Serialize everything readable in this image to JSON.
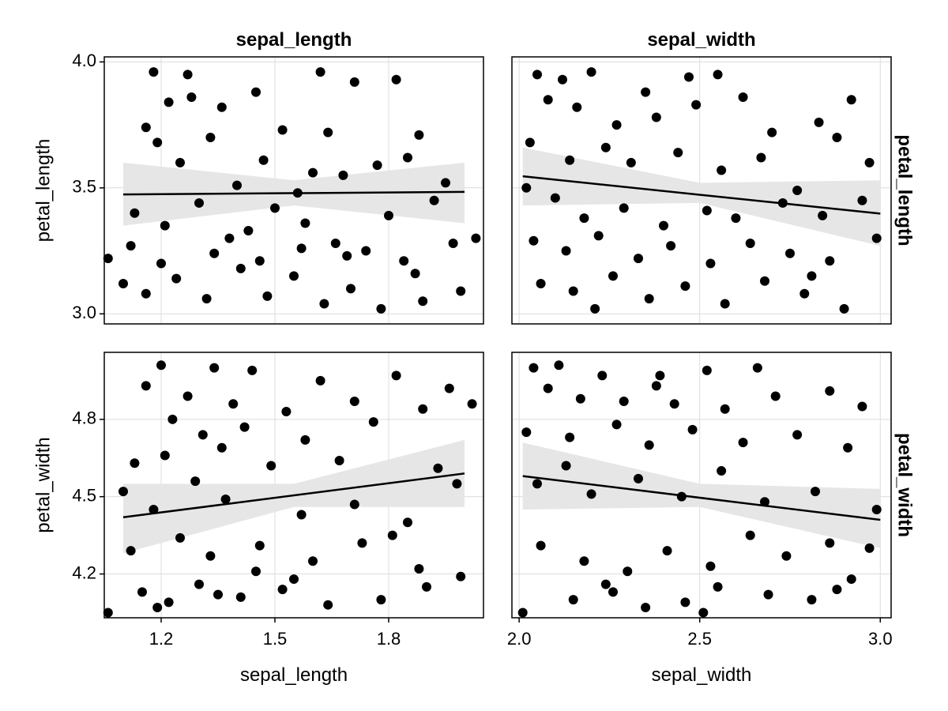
{
  "colors": {
    "point": "#000000",
    "fit_line": "#000000",
    "band": "#e6e6e6",
    "grid": "#dcdcdc",
    "frame": "#000000"
  },
  "chart_data": {
    "type": "scatter",
    "layout": "2x2 facet grid with linear fit and confidence band",
    "x_variables": [
      {
        "name": "sepal_length",
        "label": "sepal_length",
        "lim": [
          1.05,
          2.05
        ],
        "ticks": [
          1.2,
          1.5,
          1.8
        ],
        "tick_labels": [
          "1.2",
          "1.5",
          "1.8"
        ]
      },
      {
        "name": "sepal_width",
        "label": "sepal_width",
        "lim": [
          1.98,
          3.03
        ],
        "ticks": [
          2.0,
          2.5,
          3.0
        ],
        "tick_labels": [
          "2.0",
          "2.5",
          "3.0"
        ]
      }
    ],
    "y_variables": [
      {
        "name": "petal_length",
        "label": "petal_length",
        "lim": [
          2.96,
          4.02
        ],
        "ticks": [
          3.0,
          3.5,
          4.0
        ],
        "tick_labels": [
          "3.0",
          "3.5",
          "4.0"
        ]
      },
      {
        "name": "petal_width",
        "label": "petal_width",
        "lim": [
          4.03,
          5.06
        ],
        "ticks": [
          4.2,
          4.5,
          4.8
        ],
        "tick_labels": [
          "4.2",
          "4.5",
          "4.8"
        ]
      }
    ],
    "grid": true,
    "panels": [
      {
        "row": 0,
        "col": 0,
        "fit": {
          "x0": 1.1,
          "y0": 3.474,
          "x1": 2.0,
          "y1": 3.484
        },
        "band": [
          [
            1.1,
            3.35,
            3.6
          ],
          [
            1.55,
            3.43,
            3.53
          ],
          [
            2.0,
            3.36,
            3.6
          ]
        ],
        "points": [
          [
            1.18,
            3.96
          ],
          [
            1.27,
            3.95
          ],
          [
            1.45,
            3.88
          ],
          [
            1.62,
            3.96
          ],
          [
            1.71,
            3.92
          ],
          [
            1.82,
            3.93
          ],
          [
            1.22,
            3.84
          ],
          [
            1.28,
            3.86
          ],
          [
            1.36,
            3.82
          ],
          [
            1.52,
            3.73
          ],
          [
            1.64,
            3.72
          ],
          [
            1.88,
            3.71
          ],
          [
            1.16,
            3.74
          ],
          [
            1.19,
            3.68
          ],
          [
            1.25,
            3.6
          ],
          [
            1.33,
            3.7
          ],
          [
            1.4,
            3.51
          ],
          [
            1.47,
            3.61
          ],
          [
            1.56,
            3.48
          ],
          [
            1.6,
            3.56
          ],
          [
            1.68,
            3.55
          ],
          [
            1.77,
            3.59
          ],
          [
            1.85,
            3.62
          ],
          [
            1.95,
            3.52
          ],
          [
            1.13,
            3.4
          ],
          [
            1.21,
            3.35
          ],
          [
            1.3,
            3.44
          ],
          [
            1.38,
            3.3
          ],
          [
            1.43,
            3.33
          ],
          [
            1.5,
            3.42
          ],
          [
            1.58,
            3.36
          ],
          [
            1.66,
            3.28
          ],
          [
            1.74,
            3.25
          ],
          [
            1.8,
            3.39
          ],
          [
            1.92,
            3.45
          ],
          [
            2.03,
            3.3
          ],
          [
            1.1,
            3.12
          ],
          [
            1.16,
            3.08
          ],
          [
            1.24,
            3.14
          ],
          [
            1.32,
            3.06
          ],
          [
            1.41,
            3.18
          ],
          [
            1.48,
            3.07
          ],
          [
            1.55,
            3.15
          ],
          [
            1.63,
            3.04
          ],
          [
            1.7,
            3.1
          ],
          [
            1.78,
            3.02
          ],
          [
            1.87,
            3.16
          ],
          [
            1.99,
            3.09
          ],
          [
            1.06,
            3.22
          ],
          [
            1.12,
            3.27
          ],
          [
            1.2,
            3.2
          ],
          [
            1.34,
            3.24
          ],
          [
            1.46,
            3.21
          ],
          [
            1.57,
            3.26
          ],
          [
            1.69,
            3.23
          ],
          [
            1.84,
            3.21
          ],
          [
            1.97,
            3.28
          ],
          [
            1.89,
            3.05
          ]
        ]
      },
      {
        "row": 0,
        "col": 1,
        "fit": {
          "x0": 2.01,
          "y0": 3.546,
          "x1": 3.0,
          "y1": 3.398
        },
        "band": [
          [
            2.01,
            3.43,
            3.66
          ],
          [
            2.5,
            3.44,
            3.52
          ],
          [
            3.0,
            3.27,
            3.53
          ]
        ],
        "points": [
          [
            2.05,
            3.95
          ],
          [
            2.12,
            3.93
          ],
          [
            2.2,
            3.96
          ],
          [
            2.35,
            3.88
          ],
          [
            2.47,
            3.94
          ],
          [
            2.55,
            3.95
          ],
          [
            2.08,
            3.85
          ],
          [
            2.16,
            3.82
          ],
          [
            2.27,
            3.75
          ],
          [
            2.38,
            3.78
          ],
          [
            2.49,
            3.83
          ],
          [
            2.62,
            3.86
          ],
          [
            2.7,
            3.72
          ],
          [
            2.83,
            3.76
          ],
          [
            2.92,
            3.85
          ],
          [
            2.03,
            3.68
          ],
          [
            2.14,
            3.61
          ],
          [
            2.24,
            3.66
          ],
          [
            2.31,
            3.6
          ],
          [
            2.44,
            3.64
          ],
          [
            2.56,
            3.57
          ],
          [
            2.67,
            3.62
          ],
          [
            2.77,
            3.49
          ],
          [
            2.88,
            3.7
          ],
          [
            2.97,
            3.6
          ],
          [
            2.02,
            3.5
          ],
          [
            2.1,
            3.46
          ],
          [
            2.18,
            3.38
          ],
          [
            2.29,
            3.42
          ],
          [
            2.4,
            3.35
          ],
          [
            2.52,
            3.41
          ],
          [
            2.6,
            3.38
          ],
          [
            2.73,
            3.44
          ],
          [
            2.84,
            3.39
          ],
          [
            2.95,
            3.45
          ],
          [
            2.04,
            3.29
          ],
          [
            2.13,
            3.25
          ],
          [
            2.22,
            3.31
          ],
          [
            2.33,
            3.22
          ],
          [
            2.42,
            3.27
          ],
          [
            2.53,
            3.2
          ],
          [
            2.64,
            3.28
          ],
          [
            2.75,
            3.24
          ],
          [
            2.86,
            3.21
          ],
          [
            2.99,
            3.3
          ],
          [
            2.06,
            3.12
          ],
          [
            2.15,
            3.09
          ],
          [
            2.26,
            3.15
          ],
          [
            2.36,
            3.06
          ],
          [
            2.46,
            3.11
          ],
          [
            2.57,
            3.04
          ],
          [
            2.68,
            3.13
          ],
          [
            2.79,
            3.08
          ],
          [
            2.9,
            3.02
          ],
          [
            2.21,
            3.02
          ],
          [
            2.81,
            3.15
          ]
        ]
      },
      {
        "row": 1,
        "col": 0,
        "fit": {
          "x0": 1.1,
          "y0": 4.42,
          "x1": 2.0,
          "y1": 4.59
        },
        "band": [
          [
            1.1,
            4.28,
            4.55
          ],
          [
            1.55,
            4.46,
            4.55
          ],
          [
            2.0,
            4.46,
            4.72
          ]
        ],
        "points": [
          [
            1.2,
            5.01
          ],
          [
            1.34,
            5.0
          ],
          [
            1.44,
            4.99
          ],
          [
            1.62,
            4.95
          ],
          [
            1.82,
            4.97
          ],
          [
            1.96,
            4.92
          ],
          [
            1.16,
            4.93
          ],
          [
            1.27,
            4.89
          ],
          [
            1.39,
            4.86
          ],
          [
            1.53,
            4.83
          ],
          [
            1.71,
            4.87
          ],
          [
            1.89,
            4.84
          ],
          [
            1.23,
            4.8
          ],
          [
            1.31,
            4.74
          ],
          [
            1.42,
            4.77
          ],
          [
            1.58,
            4.72
          ],
          [
            1.76,
            4.79
          ],
          [
            2.02,
            4.86
          ],
          [
            1.13,
            4.63
          ],
          [
            1.21,
            4.66
          ],
          [
            1.36,
            4.69
          ],
          [
            1.49,
            4.62
          ],
          [
            1.67,
            4.64
          ],
          [
            1.93,
            4.61
          ],
          [
            1.1,
            4.52
          ],
          [
            1.18,
            4.45
          ],
          [
            1.29,
            4.56
          ],
          [
            1.37,
            4.49
          ],
          [
            1.57,
            4.43
          ],
          [
            1.71,
            4.47
          ],
          [
            1.85,
            4.4
          ],
          [
            1.98,
            4.55
          ],
          [
            1.12,
            4.29
          ],
          [
            1.25,
            4.34
          ],
          [
            1.33,
            4.27
          ],
          [
            1.46,
            4.31
          ],
          [
            1.6,
            4.25
          ],
          [
            1.73,
            4.32
          ],
          [
            1.88,
            4.22
          ],
          [
            1.99,
            4.19
          ],
          [
            1.15,
            4.13
          ],
          [
            1.22,
            4.09
          ],
          [
            1.3,
            4.16
          ],
          [
            1.41,
            4.11
          ],
          [
            1.52,
            4.14
          ],
          [
            1.64,
            4.08
          ],
          [
            1.78,
            4.1
          ],
          [
            1.9,
            4.15
          ],
          [
            1.06,
            4.05
          ],
          [
            1.19,
            4.07
          ],
          [
            1.35,
            4.12
          ],
          [
            1.55,
            4.18
          ],
          [
            1.81,
            4.35
          ],
          [
            1.45,
            4.21
          ]
        ]
      },
      {
        "row": 1,
        "col": 1,
        "fit": {
          "x0": 2.01,
          "y0": 4.58,
          "x1": 3.0,
          "y1": 4.41
        },
        "band": [
          [
            2.01,
            4.45,
            4.71
          ],
          [
            2.5,
            4.46,
            4.55
          ],
          [
            3.0,
            4.3,
            4.53
          ]
        ],
        "points": [
          [
            2.04,
            5.0
          ],
          [
            2.11,
            5.01
          ],
          [
            2.23,
            4.97
          ],
          [
            2.38,
            4.93
          ],
          [
            2.52,
            4.99
          ],
          [
            2.66,
            5.0
          ],
          [
            2.08,
            4.92
          ],
          [
            2.17,
            4.88
          ],
          [
            2.29,
            4.87
          ],
          [
            2.43,
            4.86
          ],
          [
            2.57,
            4.84
          ],
          [
            2.71,
            4.89
          ],
          [
            2.86,
            4.91
          ],
          [
            2.95,
            4.85
          ],
          [
            2.02,
            4.75
          ],
          [
            2.14,
            4.73
          ],
          [
            2.27,
            4.78
          ],
          [
            2.36,
            4.7
          ],
          [
            2.48,
            4.76
          ],
          [
            2.62,
            4.71
          ],
          [
            2.77,
            4.74
          ],
          [
            2.91,
            4.69
          ],
          [
            2.05,
            4.55
          ],
          [
            2.13,
            4.62
          ],
          [
            2.2,
            4.51
          ],
          [
            2.33,
            4.57
          ],
          [
            2.45,
            4.5
          ],
          [
            2.56,
            4.6
          ],
          [
            2.68,
            4.48
          ],
          [
            2.82,
            4.52
          ],
          [
            2.99,
            4.45
          ],
          [
            2.06,
            4.31
          ],
          [
            2.18,
            4.25
          ],
          [
            2.3,
            4.21
          ],
          [
            2.41,
            4.29
          ],
          [
            2.53,
            4.23
          ],
          [
            2.64,
            4.35
          ],
          [
            2.74,
            4.27
          ],
          [
            2.86,
            4.32
          ],
          [
            2.97,
            4.3
          ],
          [
            2.01,
            4.05
          ],
          [
            2.15,
            4.1
          ],
          [
            2.26,
            4.13
          ],
          [
            2.35,
            4.07
          ],
          [
            2.46,
            4.09
          ],
          [
            2.55,
            4.15
          ],
          [
            2.69,
            4.12
          ],
          [
            2.81,
            4.1
          ],
          [
            2.92,
            4.18
          ],
          [
            2.24,
            4.16
          ],
          [
            2.51,
            4.05
          ],
          [
            2.88,
            4.14
          ],
          [
            2.39,
            4.97
          ]
        ]
      }
    ],
    "facet_titles": {
      "columns": [
        "sepal_length",
        "sepal_width"
      ],
      "rows": [
        "petal_length",
        "petal_width"
      ]
    },
    "axis_labels": {
      "x": [
        "sepal_length",
        "sepal_width"
      ],
      "y": [
        "petal_length",
        "petal_width"
      ]
    }
  }
}
